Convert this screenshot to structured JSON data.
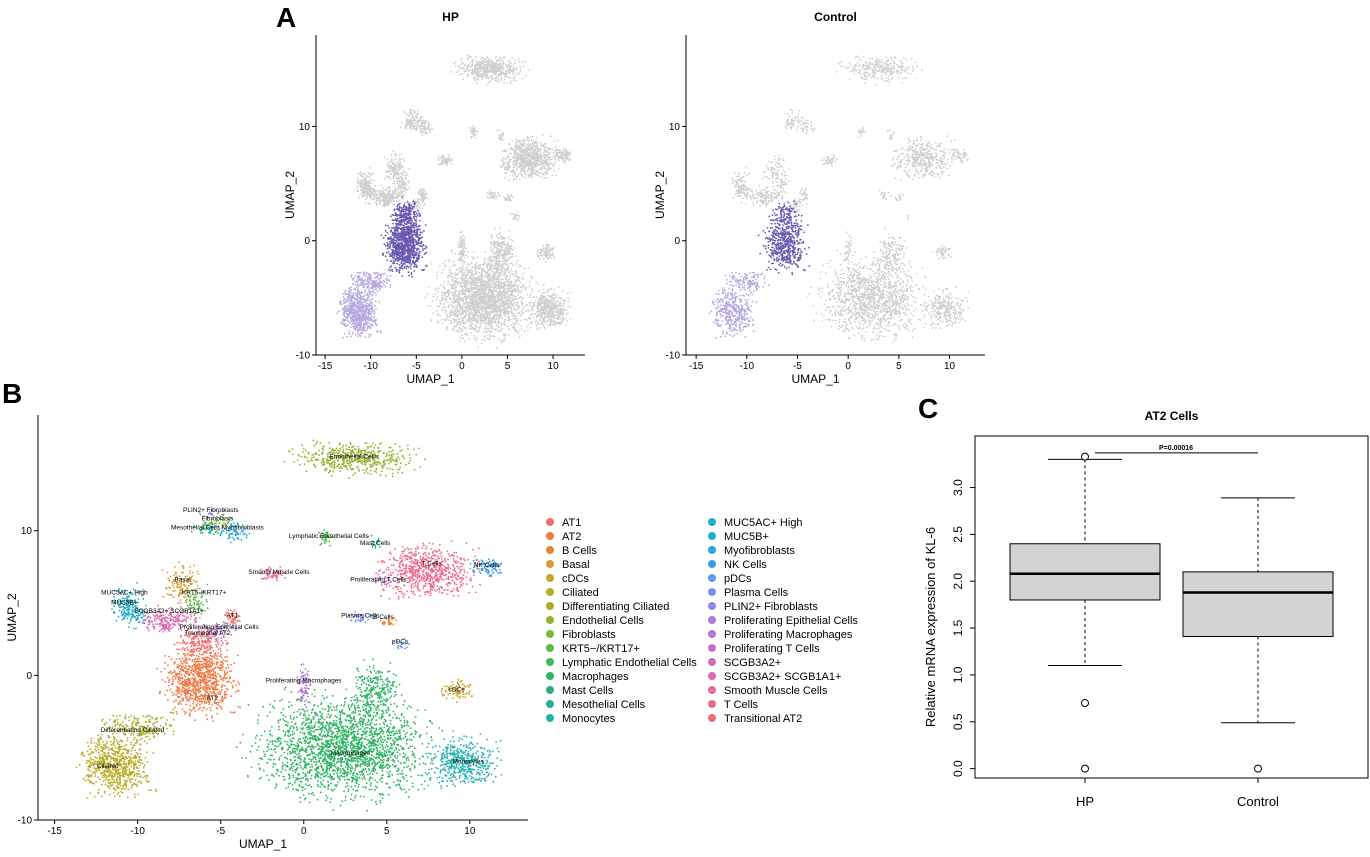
{
  "panels": {
    "a": "A",
    "b": "B",
    "c": "C"
  },
  "colors": {
    "highlight": "#6a58b0",
    "highlight_light": "#b6a9de",
    "grey": "#cfcfcf",
    "box_fill": "#d3d3d3"
  },
  "chart_data": [
    {
      "id": "umap_hp",
      "type": "scatter",
      "title": "HP",
      "xlabel": "UMAP_1",
      "ylabel": "UMAP_2",
      "xlim": [
        -16,
        13.5
      ],
      "ylim": [
        -10,
        18
      ],
      "xticks": [
        "-15",
        "-10",
        "-5",
        "0",
        "5",
        "10"
      ],
      "xtick_values": [
        -15,
        -10,
        -5,
        0,
        5,
        10
      ],
      "yticks": [
        "-10",
        "0",
        "10"
      ],
      "ytick_values": [
        -10,
        0,
        10
      ],
      "highlight": "AT2"
    },
    {
      "id": "umap_control",
      "type": "scatter",
      "title": "Control",
      "xlabel": "UMAP_1",
      "ylabel": "UMAP_2",
      "xlim": [
        -16,
        13.5
      ],
      "ylim": [
        -10,
        18
      ],
      "xticks": [
        "-15",
        "-10",
        "-5",
        "0",
        "5",
        "10"
      ],
      "xtick_values": [
        -15,
        -10,
        -5,
        0,
        5,
        10
      ],
      "yticks": [
        "-10",
        "0",
        "10"
      ],
      "ytick_values": [
        -10,
        0,
        10
      ],
      "highlight": "AT2"
    },
    {
      "id": "umap_all",
      "type": "scatter",
      "title": "",
      "xlabel": "UMAP_1",
      "ylabel": "UMAP_2",
      "xlim": [
        -16,
        13.5
      ],
      "ylim": [
        -10,
        18
      ],
      "xticks": [
        "-15",
        "-10",
        "-5",
        "0",
        "5",
        "10"
      ],
      "xtick_values": [
        -15,
        -10,
        -5,
        0,
        5,
        10
      ],
      "yticks": [
        "-10",
        "0",
        "10"
      ],
      "ytick_values": [
        -10,
        0,
        10
      ],
      "cluster_labels": [
        {
          "text": "Endothelial Cells",
          "x": 3.0,
          "y": 15.0
        },
        {
          "text": "PLIN2+ Fibroblasts",
          "x": -5.6,
          "y": 11.3
        },
        {
          "text": "Fibroblasts",
          "x": -5.2,
          "y": 10.7
        },
        {
          "text": "Mesothelial Cells Myofibroblasts",
          "x": -5.2,
          "y": 10.1
        },
        {
          "text": "Lymphatic Endothelial Cells",
          "x": 1.5,
          "y": 9.5
        },
        {
          "text": "Mast Cells",
          "x": 4.3,
          "y": 9.0
        },
        {
          "text": "Smooth Muscle Cells",
          "x": -1.5,
          "y": 7.0
        },
        {
          "text": "T Cells",
          "x": 7.7,
          "y": 7.6
        },
        {
          "text": "NK Cells",
          "x": 11.0,
          "y": 7.5
        },
        {
          "text": "Proliferating T Cells",
          "x": 4.5,
          "y": 6.5
        },
        {
          "text": "Basal",
          "x": -7.3,
          "y": 6.5
        },
        {
          "text": "MUC5AC+ High",
          "x": -10.8,
          "y": 5.6
        },
        {
          "text": "KRT5-/KRT17+",
          "x": -6.0,
          "y": 5.6
        },
        {
          "text": "MUC5B+",
          "x": -10.8,
          "y": 4.9
        },
        {
          "text": "SCGB3A2+ SCGB1A1+",
          "x": -8.1,
          "y": 4.3
        },
        {
          "text": "AT1",
          "x": -4.3,
          "y": 4.0
        },
        {
          "text": "Plasma Cells",
          "x": 3.4,
          "y": 4.0
        },
        {
          "text": "B Cells",
          "x": 4.8,
          "y": 3.9
        },
        {
          "text": "Proliferating Epithelial Cells",
          "x": -5.1,
          "y": 3.2
        },
        {
          "text": "Transitional AT2",
          "x": -5.8,
          "y": 2.8
        },
        {
          "text": "pDCs",
          "x": 5.8,
          "y": 2.2
        },
        {
          "text": "Proliferating Macrophages",
          "x": 0.0,
          "y": -0.5
        },
        {
          "text": "cDCs",
          "x": 9.2,
          "y": -1.1
        },
        {
          "text": "AT2",
          "x": -5.5,
          "y": -1.7
        },
        {
          "text": "Differentiating Ciliated",
          "x": -10.3,
          "y": -3.9
        },
        {
          "text": "Macrophages",
          "x": 2.8,
          "y": -5.5
        },
        {
          "text": "Monocytes",
          "x": 9.9,
          "y": -6.1
        },
        {
          "text": "Ciliated",
          "x": -11.8,
          "y": -6.4
        }
      ]
    },
    {
      "id": "boxplot_kl6",
      "type": "box",
      "title": "AT2 Cells",
      "xlabel": "",
      "ylabel": "Relative mRNA expression of KL-6",
      "ylim": [
        -0.1,
        3.55
      ],
      "yticks": [
        "0.0",
        "0.5",
        "1.0",
        "1.5",
        "2.0",
        "2.5",
        "3.0"
      ],
      "ytick_values": [
        0,
        0.5,
        1.0,
        1.5,
        2.0,
        2.5,
        3.0
      ],
      "categories": [
        "HP",
        "Control"
      ],
      "series": [
        {
          "name": "HP",
          "min": 1.1,
          "q1": 1.8,
          "median": 2.08,
          "q3": 2.4,
          "max": 3.3,
          "outliers": [
            3.33,
            0.7,
            0.0
          ]
        },
        {
          "name": "Control",
          "min": 0.49,
          "q1": 1.41,
          "median": 1.88,
          "q3": 2.1,
          "max": 2.89,
          "outliers": [
            0.0
          ]
        }
      ],
      "annotation": "P=0.00016",
      "annotation_y": 3.37
    }
  ],
  "legend": {
    "col1": [
      "AT1",
      "AT2",
      "B Cells",
      "Basal",
      "cDCs",
      "Ciliated",
      "Differentiating Ciliated",
      "Endothelial Cells",
      "Fibroblasts",
      "KRT5−/KRT17+",
      "Lymphatic Endothelial Cells",
      "Macrophages",
      "Mast Cells",
      "Mesothelial Cells",
      "Monocytes"
    ],
    "col2": [
      "MUC5AC+ High",
      "MUC5B+",
      "Myofibroblasts",
      "NK Cells",
      "pDCs",
      "Plasma Cells",
      "PLIN2+ Fibroblasts",
      "Proliferating Epithelial Cells",
      "Proliferating Macrophages",
      "Proliferating T Cells",
      "SCGB3A2+",
      "SCGB3A2+ SCGB1A1+",
      "Smooth Muscle Cells",
      "T Cells",
      "Transitional AT2"
    ],
    "colors1": [
      "#f06e6e",
      "#f07a45",
      "#e88530",
      "#d89b30",
      "#c7a328",
      "#b8ab25",
      "#a8b02a",
      "#94b431",
      "#7cb83e",
      "#5db845",
      "#3fb851",
      "#2fb463",
      "#2aae80",
      "#26ad9b",
      "#23b0b0"
    ],
    "colors2": [
      "#22afc0",
      "#21abcf",
      "#26a6dd",
      "#3aa0e6",
      "#5d98ea",
      "#7b8fea",
      "#9387e6",
      "#a47fde",
      "#b479d4",
      "#c473c7",
      "#d16eb9",
      "#dc6baa",
      "#e66b9a",
      "#ed6c8b",
      "#f06c79"
    ]
  }
}
